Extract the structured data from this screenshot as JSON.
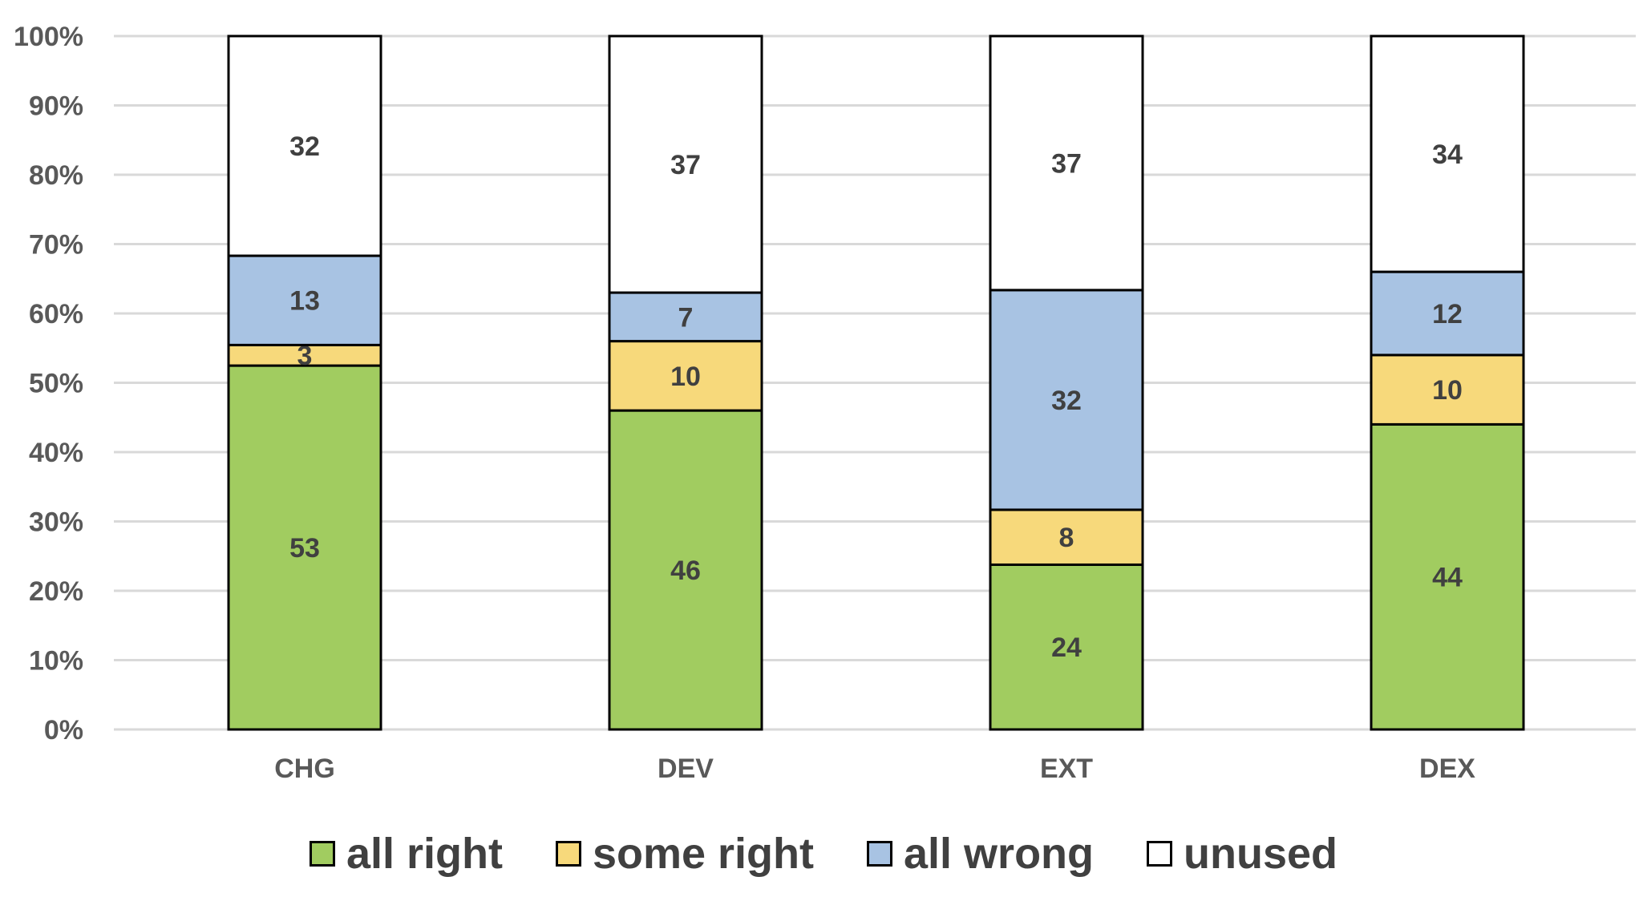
{
  "chart_data": {
    "type": "bar",
    "stacked": true,
    "normalized_percent": true,
    "title": "",
    "xlabel": "",
    "ylabel": "",
    "categories": [
      "CHG",
      "DEV",
      "EXT",
      "DEX"
    ],
    "series": [
      {
        "name": "all right",
        "color": "#a1cc60",
        "values": [
          53,
          46,
          24,
          44
        ]
      },
      {
        "name": "some right",
        "color": "#f7d97b",
        "values": [
          3,
          10,
          8,
          10
        ]
      },
      {
        "name": "all wrong",
        "color": "#a8c3e3",
        "values": [
          13,
          7,
          32,
          12
        ]
      },
      {
        "name": "unused",
        "color": "#ffffff",
        "values": [
          32,
          37,
          37,
          34
        ]
      }
    ],
    "y_ticks": [
      "0%",
      "10%",
      "20%",
      "30%",
      "40%",
      "50%",
      "60%",
      "70%",
      "80%",
      "90%",
      "100%"
    ],
    "ylim": [
      0,
      100
    ],
    "grid": true,
    "legend_position": "bottom",
    "data_labels": true
  }
}
